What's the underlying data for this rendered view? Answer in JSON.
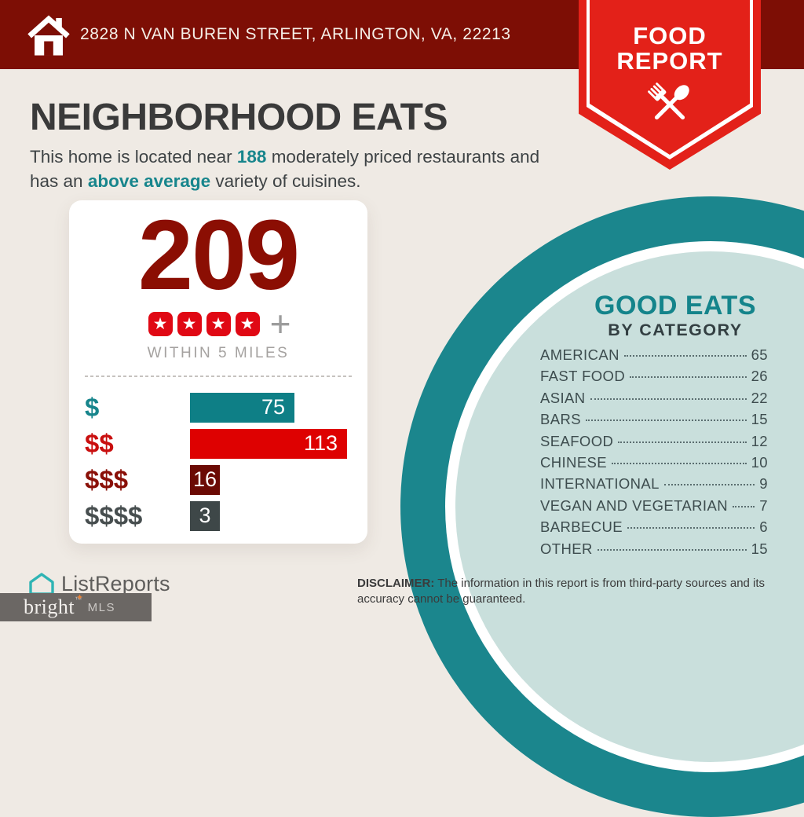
{
  "header": {
    "address": "2828 N VAN BUREN STREET, ARLINGTON, VA, 22213"
  },
  "badge": {
    "line1": "FOOD",
    "line2": "REPORT"
  },
  "intro": {
    "title": "NEIGHBORHOOD EATS",
    "line1_pre": "This home is located near ",
    "line1_bold": "188",
    "line1_post": " moderately priced restaurants and",
    "line2_pre": "has an ",
    "line2_bold": "above average",
    "line2_post": " variety of cuisines."
  },
  "summary_card": {
    "total": "209",
    "stars": 4,
    "plus": "+",
    "radius_label": "WITHIN 5 MILES",
    "price_bars": [
      {
        "label": "$",
        "value": 75,
        "label_color": "#17858C",
        "bar_color": "#0E7F86"
      },
      {
        "label": "$$",
        "value": 113,
        "label_color": "#C90F0F",
        "bar_color": "#DE0101"
      },
      {
        "label": "$$$",
        "value": 16,
        "label_color": "#8A1008",
        "bar_color": "#6B0A04"
      },
      {
        "label": "$$$$",
        "value": 3,
        "label_color": "#474E4F",
        "bar_color": "#3E4748"
      }
    ]
  },
  "categories": {
    "title": "GOOD EATS",
    "subtitle": "BY CATEGORY",
    "items": [
      {
        "label": "AMERICAN",
        "value": 65
      },
      {
        "label": "FAST FOOD",
        "value": 26
      },
      {
        "label": "ASIAN",
        "value": 22
      },
      {
        "label": "BARS",
        "value": 15
      },
      {
        "label": "SEAFOOD",
        "value": 12
      },
      {
        "label": "CHINESE",
        "value": 10
      },
      {
        "label": "INTERNATIONAL",
        "value": 9
      },
      {
        "label": "VEGAN AND VEGETARIAN",
        "value": 7
      },
      {
        "label": "BARBECUE",
        "value": 6
      },
      {
        "label": "OTHER",
        "value": 15
      }
    ]
  },
  "footer": {
    "disclaimer_label": "DISCLAIMER:",
    "disclaimer_text": " The information in this report is from third-party sources and its accuracy cannot be guaranteed.",
    "listreports_label": "ListReports",
    "bright_label": "bright",
    "bright_tm": "TM",
    "mls_label": "MLS"
  },
  "chart_data": {
    "type": "bar",
    "title": "Restaurants by price tier within 5 miles",
    "categories": [
      "$",
      "$$",
      "$$$",
      "$$$$"
    ],
    "values": [
      75,
      113,
      16,
      3
    ],
    "total_label": "209",
    "rating_stars": 4
  },
  "colors": {
    "header_maroon": "#7D0E05",
    "badge_red": "#E32119",
    "background_cream": "#EFEAE4",
    "accent_teal": "#17858C",
    "number_maroon": "#8B0E03",
    "star_red": "#E00814",
    "circle_teal": "#1B868D",
    "circle_fill": "#C9DFDC",
    "bright_box_gray": "#6B6764"
  }
}
